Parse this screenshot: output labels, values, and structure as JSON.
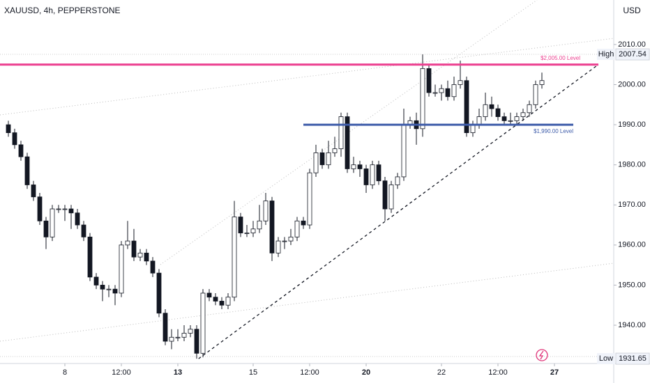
{
  "chart_data": {
    "type": "candlestick",
    "title": "XAUUSD, 4h, PEPPERSTONE",
    "currency": "USD",
    "open": [
      1990,
      1988,
      1985,
      1982,
      1975,
      1972,
      1966,
      1962,
      1969,
      1969,
      1969,
      1968,
      1965,
      1962,
      1952,
      1950,
      1949,
      1949,
      1948,
      1960,
      1961,
      1957,
      1958,
      1956,
      1953,
      1943,
      1936,
      1937,
      1937,
      1938,
      1939,
      1933,
      1948,
      1947,
      1946,
      1945,
      1947,
      1967,
      1963,
      1963,
      1964,
      1966,
      1971,
      1958,
      1961,
      1961,
      1962,
      1966,
      1965,
      1978,
      1983,
      1980,
      1983,
      1984,
      1992,
      1979,
      1980,
      1979,
      1975,
      1980,
      1976,
      1969,
      1975,
      1977,
      1990,
      1991,
      1989,
      2004,
      1998,
      1998,
      1999,
      1997,
      2000,
      2001,
      1988,
      1990,
      1992,
      1995,
      1994,
      1992,
      1991,
      1991,
      1992,
      1993,
      1995,
      2000
    ],
    "high": [
      1991,
      1989,
      1986,
      1983,
      1976,
      1973,
      1967,
      1970,
      1970,
      1970,
      1970,
      1969,
      1966,
      1963,
      1953,
      1951,
      1950,
      1950,
      1961,
      1966,
      1964,
      1959,
      1959,
      1957,
      1954,
      1944,
      1939,
      1939,
      1940,
      1940,
      1940,
      1949,
      1949,
      1948,
      1947,
      1948,
      1971,
      1968,
      1965,
      1966,
      1970,
      1973,
      1972,
      1962,
      1962,
      1964,
      1967,
      1967,
      1979,
      1985,
      1984,
      1986,
      1987,
      1993,
      1993,
      1982,
      1981,
      1980,
      1981,
      1981,
      1977,
      1976,
      1978,
      1994,
      1992,
      1993,
      2007.54,
      2005,
      2000,
      2000,
      2001,
      2002,
      2006,
      2002,
      1991,
      1994,
      1998,
      1997,
      1995,
      1993,
      1993,
      1993,
      1994,
      1996,
      2001,
      2003
    ],
    "low": [
      1987,
      1984,
      1981,
      1974,
      1971,
      1965,
      1959,
      1961,
      1968,
      1966,
      1964,
      1964,
      1961,
      1951,
      1949,
      1946,
      1947,
      1945,
      1947,
      1959,
      1956,
      1956,
      1955,
      1952,
      1942,
      1935,
      1934,
      1936,
      1936,
      1937,
      1931.65,
      1932,
      1946,
      1945,
      1944,
      1944,
      1946,
      1962,
      1962,
      1962,
      1963,
      1965,
      1956,
      1957,
      1959,
      1960,
      1961,
      1964,
      1964,
      1977,
      1979,
      1979,
      1982,
      1982,
      1978,
      1978,
      1977,
      1973,
      1974,
      1975,
      1966,
      1968,
      1974,
      1976,
      1989,
      1985,
      1987,
      1997,
      1997,
      1996,
      1996,
      1996,
      1999,
      1987,
      1987,
      1989,
      1991,
      1992,
      1991,
      1990,
      1990,
      1990,
      1991,
      1992,
      1994,
      1999
    ],
    "close": [
      1988,
      1985,
      1982,
      1975,
      1972,
      1966,
      1962,
      1969,
      1969,
      1969,
      1968,
      1965,
      1962,
      1952,
      1950,
      1949,
      1949,
      1948,
      1960,
      1961,
      1957,
      1958,
      1956,
      1953,
      1943,
      1936,
      1937,
      1937,
      1938,
      1939,
      1933,
      1948,
      1947,
      1946,
      1945,
      1947,
      1967,
      1963,
      1963,
      1964,
      1966,
      1971,
      1958,
      1961,
      1961,
      1962,
      1966,
      1965,
      1978,
      1983,
      1980,
      1983,
      1984,
      1992,
      1979,
      1980,
      1979,
      1975,
      1980,
      1976,
      1969,
      1975,
      1977,
      1990,
      1991,
      1989,
      2004,
      1998,
      1998,
      1999,
      1997,
      2000,
      2001,
      1988,
      1990,
      1992,
      1995,
      1994,
      1992,
      1991,
      1991,
      1992,
      1993,
      1995,
      2000,
      2001
    ],
    "ylim": [
      1930.45,
      2021.1
    ],
    "yticks": [
      {
        "value": 1940,
        "label": "1940.00"
      },
      {
        "value": 1950,
        "label": "1950.00"
      },
      {
        "value": 1960,
        "label": "1960.00"
      },
      {
        "value": 1970,
        "label": "1970.00"
      },
      {
        "value": 1980,
        "label": "1980.00"
      },
      {
        "value": 1990,
        "label": "1990.00"
      },
      {
        "value": 2000,
        "label": "2000.00"
      },
      {
        "value": 2010,
        "label": "2010.00"
      }
    ],
    "xticks": [
      {
        "value": 9,
        "label": "8"
      },
      {
        "value": 18,
        "label": "12:00"
      },
      {
        "value": 27,
        "label": "13"
      },
      {
        "value": 39,
        "label": "15"
      },
      {
        "value": 48,
        "label": "12:00"
      },
      {
        "value": 57,
        "label": "20"
      },
      {
        "value": 69,
        "label": "22"
      },
      {
        "value": 78,
        "label": "12:00"
      },
      {
        "value": 87,
        "label": "27"
      }
    ],
    "levels": [
      {
        "label": "$2,005.00  Level",
        "value": 2005,
        "color": "#ec3f8f",
        "from": -2,
        "to": 94
      },
      {
        "label": "$1,990.00 Level",
        "value": 1990,
        "color": "#3d5ba9",
        "from": 47,
        "to": 90
      }
    ],
    "trendline": {
      "from": [
        30.3,
        1931.65
      ],
      "to": [
        94,
        2005
      ]
    },
    "high_marker": {
      "text": "High",
      "value": 2007.54,
      "label": "2007.54"
    },
    "low_marker": {
      "text": "Low",
      "value": 1931.65,
      "label": "1931.65"
    }
  }
}
